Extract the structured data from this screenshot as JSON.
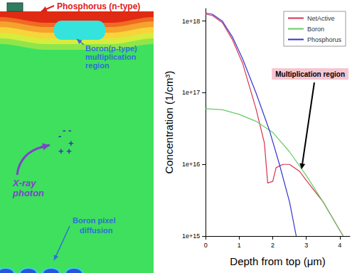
{
  "diagram": {
    "top_label": "Phosphorus (n-type)",
    "boron_region_label": [
      "Boron(p-type)",
      "multiplication",
      "region"
    ],
    "photon_label": [
      "X-ray",
      "photon"
    ],
    "charges": {
      "electrons": [
        "- -",
        "-"
      ],
      "holes": [
        "+",
        "+ +"
      ]
    },
    "pixel_label": [
      "Boron pixel",
      "diffusion"
    ]
  },
  "chart_data": {
    "type": "line",
    "log": "y",
    "grid": false,
    "legend": "upper right",
    "xlabel": "Depth from top (μm)",
    "ylabel": "Concentration (1/cm³)",
    "xlim": [
      0,
      4.3
    ],
    "xticks": [
      0,
      1,
      2,
      3,
      4
    ],
    "ylim": [
      1000000000000000.0,
      1.5e+18
    ],
    "yticks": [
      {
        "value": 1000000000000000.0,
        "label": "1e+15"
      },
      {
        "value": 1e+16,
        "label": "1e+16"
      },
      {
        "value": 1e+17,
        "label": "1e+17"
      },
      {
        "value": 1e+18,
        "label": "1e+18"
      }
    ],
    "series": [
      {
        "name": "NetActive",
        "color": "#d9304f",
        "x": [
          0,
          0.2,
          0.5,
          0.8,
          1.1,
          1.5,
          1.75,
          1.85,
          2.0,
          2.1,
          2.3,
          2.5,
          2.8,
          3.0,
          3.5,
          4.0,
          4.1
        ],
        "values": [
          1.25e+18,
          1.2e+18,
          9.5e+17,
          5.5e+17,
          2.6e+17,
          6e+16,
          2e+16,
          5500000000000000.0,
          5800000000000000.0,
          9000000000000000.0,
          1e+16,
          1e+16,
          8000000000000000.0,
          6000000000000000.0,
          3000000000000000.0,
          1200000000000000.0,
          1000000000000000.0
        ]
      },
      {
        "name": "Boron",
        "color": "#66cc66",
        "x": [
          0,
          0.5,
          1.0,
          1.5,
          2.0,
          2.5,
          3.0,
          3.5,
          4.0,
          4.1
        ],
        "values": [
          6e+16,
          5.8e+16,
          5e+16,
          4e+16,
          2.8e+16,
          1.5e+16,
          7000000000000000.0,
          3000000000000000.0,
          1200000000000000.0,
          1000000000000000.0
        ]
      },
      {
        "name": "Phosphorus",
        "color": "#3333cc",
        "x": [
          0,
          0.2,
          0.5,
          0.8,
          1.1,
          1.5,
          1.9,
          2.2,
          2.5,
          2.7
        ],
        "values": [
          1.3e+18,
          1.25e+18,
          1e+18,
          6e+17,
          3e+17,
          1e+17,
          3e+16,
          1e+16,
          3000000000000000.0,
          1000000000000000.0
        ]
      }
    ],
    "annotations": [
      {
        "text": "Multiplication region",
        "x": 2.85,
        "y": 8000000000000000.0
      }
    ]
  }
}
